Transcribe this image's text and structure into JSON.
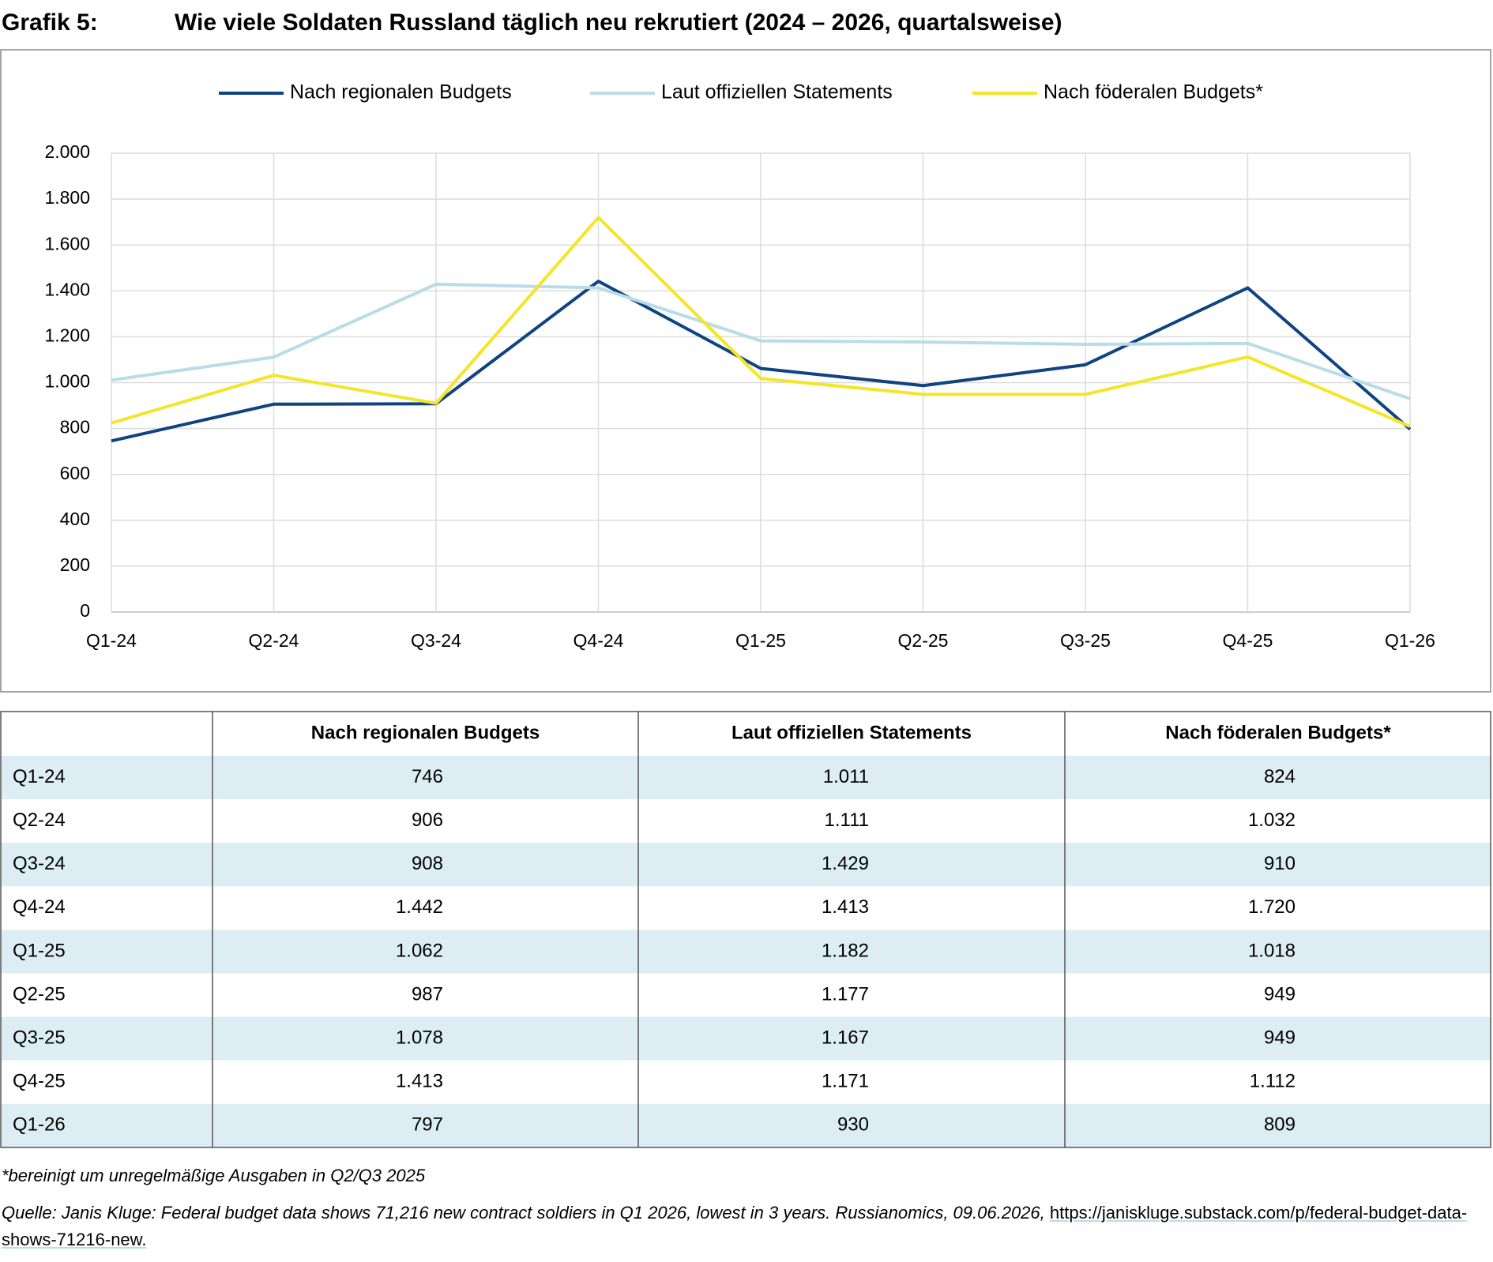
{
  "chart_data": {
    "type": "line",
    "label": "Grafik 5:",
    "title": "Wie viele Soldaten Russland täglich neu rekrutiert (2024 – 2026, quartalsweise)",
    "categories": [
      "Q1-24",
      "Q2-24",
      "Q3-24",
      "Q4-24",
      "Q1-25",
      "Q2-25",
      "Q3-25",
      "Q4-25",
      "Q1-26"
    ],
    "series": [
      {
        "name": "Nach regionalen Budgets",
        "color": "#0f4480",
        "values": [
          746,
          906,
          908,
          1442,
          1062,
          987,
          1078,
          1413,
          797
        ],
        "value_labels": [
          "746",
          "906",
          "908",
          "1.442",
          "1.062",
          "987",
          "1.078",
          "1.413",
          "797"
        ]
      },
      {
        "name": "Laut offiziellen Statements",
        "color": "#b8dce8",
        "values": [
          1011,
          1111,
          1429,
          1413,
          1182,
          1177,
          1167,
          1171,
          930
        ],
        "value_labels": [
          "1.011",
          "1.111",
          "1.429",
          "1.413",
          "1.182",
          "1.177",
          "1.167",
          "1.171",
          "930"
        ]
      },
      {
        "name": "Nach föderalen Budgets*",
        "color": "#f5e52a",
        "values": [
          824,
          1032,
          910,
          1720,
          1018,
          949,
          949,
          1112,
          809
        ],
        "value_labels": [
          "824",
          "1.032",
          "910",
          "1.720",
          "1.018",
          "949",
          "949",
          "1.112",
          "809"
        ]
      }
    ],
    "ylim": [
      0,
      2000
    ],
    "yticks": [
      0,
      200,
      400,
      600,
      800,
      {
        "value": 1000,
        "label": "1.000"
      },
      {
        "value": 1200,
        "label": "1.200"
      },
      {
        "value": 1400,
        "label": "1.400"
      },
      {
        "value": 1600,
        "label": "1.600"
      },
      {
        "value": 1800,
        "label": "1.800"
      },
      {
        "value": 2000,
        "label": "2.000"
      }
    ],
    "grid": true,
    "legend": "top"
  },
  "footnote": "*bereinigt um unregelmäßige Ausgaben in Q2/Q3 2025",
  "source": "Quelle: Janis Kluge: Federal budget data shows 71,216 new contract soldiers in Q1 2026, lowest in 3 years. Russianomics, 09.06.2026,",
  "source_link": "https://janiskluge.substack.com/p/federal-budget-data-shows-71216-new."
}
